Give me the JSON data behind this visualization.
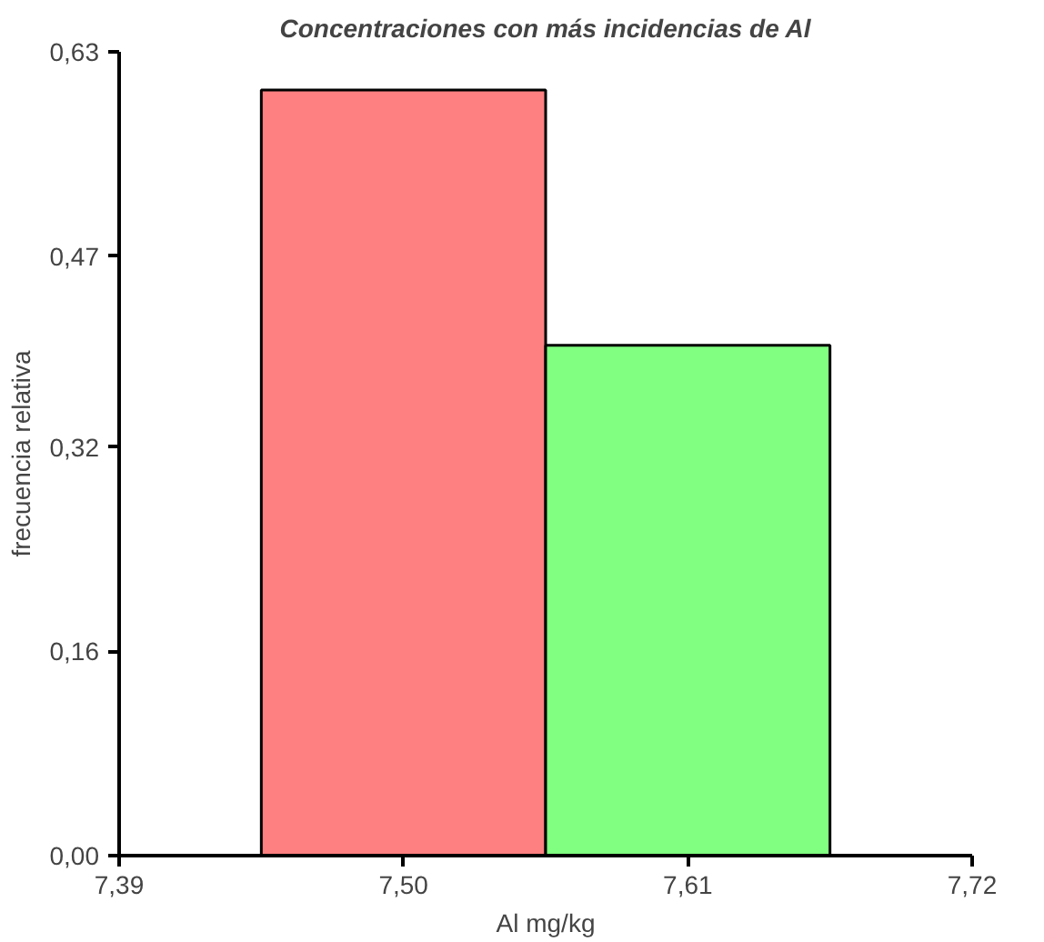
{
  "chart_data": {
    "type": "histogram",
    "title": "Concentraciones con más incidencias de Al",
    "xlabel": "Al mg/kg",
    "ylabel": "frecuencia relativa",
    "bins": [
      7.445,
      7.555,
      7.665
    ],
    "values": [
      0.6,
      0.4
    ],
    "colors": [
      "#ff8080",
      "#80ff80"
    ],
    "xlim": [
      7.39,
      7.72
    ],
    "ylim": [
      0,
      0.63
    ],
    "xticks": [
      {
        "value": 7.39,
        "label": "7,39"
      },
      {
        "value": 7.5,
        "label": "7,50"
      },
      {
        "value": 7.61,
        "label": "7,61"
      },
      {
        "value": 7.72,
        "label": "7,72"
      }
    ],
    "yticks": [
      {
        "value": 0,
        "label": "0,00"
      },
      {
        "value": 0.16,
        "label": "0,16"
      },
      {
        "value": 0.32,
        "label": "0,32"
      },
      {
        "value": 0.47,
        "label": "0,47"
      },
      {
        "value": 0.63,
        "label": "0,63"
      }
    ],
    "grid": false
  }
}
